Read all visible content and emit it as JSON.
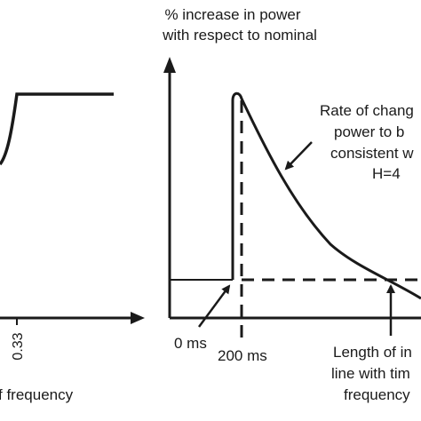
{
  "left_panel": {
    "tick_label": "0.33",
    "axis_label_fragment": "f frequency"
  },
  "right_panel": {
    "y_axis_label_line1": "% increase in power",
    "y_axis_label_line2": "with respect to nominal",
    "annotation_rate": [
      "Rate of chang",
      "power to b",
      "consistent w",
      "H=4"
    ],
    "label_0ms": "0 ms",
    "label_200ms": "200 ms",
    "annotation_length": [
      "Length of in",
      "line with tim",
      "frequency"
    ]
  },
  "colors": {
    "ink": "#1a1a1a",
    "background": "#ffffff"
  }
}
